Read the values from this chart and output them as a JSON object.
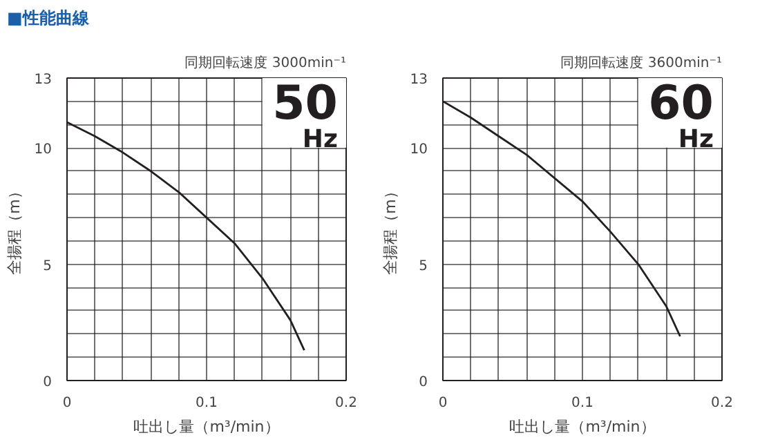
{
  "chart_data": [
    {
      "type": "line",
      "title": "同期回転速度 3000min⁻¹",
      "annotations": [
        "■性能曲線",
        "50",
        "Hz"
      ],
      "xlabel": "吐出し量（m³/min）",
      "ylabel": "全揚程（m）",
      "x": [
        0,
        0.02,
        0.04,
        0.06,
        0.08,
        0.1,
        0.12,
        0.14,
        0.16,
        0.17
      ],
      "series": [
        {
          "color": "#231f20",
          "values": [
            11.1,
            10.5,
            9.8,
            9.0,
            8.1,
            7.0,
            5.9,
            4.4,
            2.6,
            1.3
          ]
        }
      ],
      "xlim": [
        0,
        0.2
      ],
      "ylim": [
        0,
        13
      ],
      "xticks": [
        0,
        {
          "value": 0.02,
          "label": null
        },
        {
          "value": 0.04,
          "label": null
        },
        {
          "value": 0.06,
          "label": null
        },
        {
          "value": 0.08,
          "label": null
        },
        0.1,
        {
          "value": 0.12,
          "label": null
        },
        {
          "value": 0.14,
          "label": null
        },
        {
          "value": 0.16,
          "label": null
        },
        {
          "value": 0.18,
          "label": null
        },
        0.2
      ],
      "yticks": [
        0,
        {
          "value": 1,
          "label": null
        },
        {
          "value": 2,
          "label": null
        },
        {
          "value": 3,
          "label": null
        },
        {
          "value": 4,
          "label": null
        },
        5,
        {
          "value": 6,
          "label": null
        },
        {
          "value": 7,
          "label": null
        },
        {
          "value": 8,
          "label": null
        },
        {
          "value": 9,
          "label": null
        },
        10,
        {
          "value": 11,
          "label": null
        },
        {
          "value": 12,
          "label": null
        },
        13
      ],
      "grid": true,
      "marker": "none",
      "line_style": "solid"
    },
    {
      "type": "line",
      "title": "同期回転速度 3600min⁻¹",
      "annotations": [
        "60",
        "Hz"
      ],
      "xlabel": "吐出し量（m³/min）",
      "ylabel": "全揚程（m）",
      "x": [
        0,
        0.02,
        0.04,
        0.06,
        0.08,
        0.1,
        0.12,
        0.14,
        0.16,
        0.17
      ],
      "series": [
        {
          "color": "#231f20",
          "values": [
            12.0,
            11.3,
            10.5,
            9.7,
            8.7,
            7.7,
            6.4,
            5.0,
            3.2,
            1.9
          ]
        }
      ],
      "xlim": [
        0,
        0.2
      ],
      "ylim": [
        0,
        13
      ],
      "xticks": [
        0,
        {
          "value": 0.02,
          "label": null
        },
        {
          "value": 0.04,
          "label": null
        },
        {
          "value": 0.06,
          "label": null
        },
        {
          "value": 0.08,
          "label": null
        },
        0.1,
        {
          "value": 0.12,
          "label": null
        },
        {
          "value": 0.14,
          "label": null
        },
        {
          "value": 0.16,
          "label": null
        },
        {
          "value": 0.18,
          "label": null
        },
        0.2
      ],
      "yticks": [
        0,
        {
          "value": 1,
          "label": null
        },
        {
          "value": 2,
          "label": null
        },
        {
          "value": 3,
          "label": null
        },
        {
          "value": 4,
          "label": null
        },
        5,
        {
          "value": 6,
          "label": null
        },
        {
          "value": 7,
          "label": null
        },
        {
          "value": 8,
          "label": null
        },
        {
          "value": 9,
          "label": null
        },
        10,
        {
          "value": 11,
          "label": null
        },
        {
          "value": 12,
          "label": null
        },
        13
      ],
      "grid": true,
      "marker": "none",
      "line_style": "solid"
    }
  ]
}
